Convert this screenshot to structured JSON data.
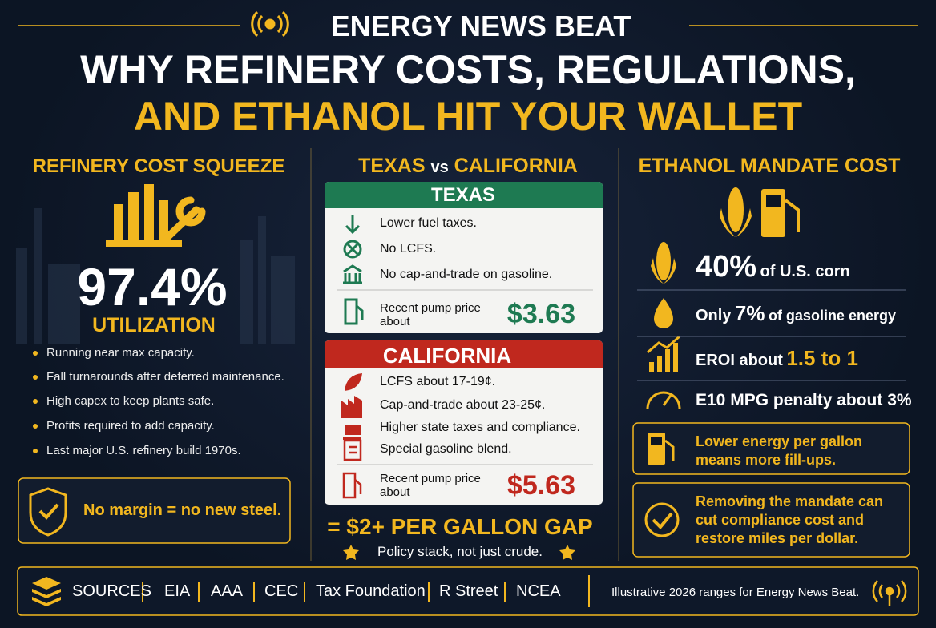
{
  "header": {
    "brand": "ENERGY NEWS BEAT",
    "title_line1": "WHY REFINERY COSTS, REGULATIONS,",
    "title_line2": "AND ETHANOL HIT YOUR WALLET"
  },
  "refinery": {
    "heading": "REFINERY COST SQUEEZE",
    "stat": "97.4%",
    "stat_label": "UTILIZATION",
    "bullets": [
      "Running near max capacity.",
      "Fall turnarounds after deferred maintenance.",
      "High capex to keep plants safe.",
      "Profits required to add capacity.",
      "Last major U.S. refinery build 1970s."
    ],
    "callout": "No margin = no new steel."
  },
  "comparison": {
    "heading_left": "TEXAS",
    "heading_vs": "vs",
    "heading_right": "CALIFORNIA",
    "texas": {
      "title": "TEXAS",
      "items": [
        "Lower fuel taxes.",
        "No LCFS.",
        "No cap-and-trade on gasoline."
      ],
      "price_label": "Recent pump price about",
      "price": "$3.63"
    },
    "california": {
      "title": "CALIFORNIA",
      "items": [
        "LCFS about 17-19¢.",
        "Cap-and-trade about 23-25¢.",
        "Higher state taxes and compliance.",
        "Special gasoline blend."
      ],
      "price_label": "Recent pump price about",
      "price": "$5.63"
    },
    "gap": "= $2+ PER GALLON GAP",
    "note": "Policy stack, not just crude."
  },
  "ethanol": {
    "heading": "ETHANOL MANDATE COST",
    "corn": {
      "value": "40%",
      "text": "of U.S. corn"
    },
    "energy": {
      "prefix": "Only",
      "value": "7%",
      "text": "of gasoline energy"
    },
    "eroi": {
      "prefix": "EROI about",
      "value": "1.5 to 1"
    },
    "mpg": "E10 MPG penalty about 3%",
    "callouts": [
      "Lower energy per gallon means more fill-ups.",
      "Removing the mandate can cut compliance cost and restore miles per dollar."
    ]
  },
  "footer": {
    "sources_label": "SOURCES",
    "sources": [
      "EIA",
      "AAA",
      "CEC",
      "Tax Foundation",
      "R Street",
      "NCEA"
    ],
    "note": "Illustrative 2026 ranges for Energy News Beat."
  }
}
